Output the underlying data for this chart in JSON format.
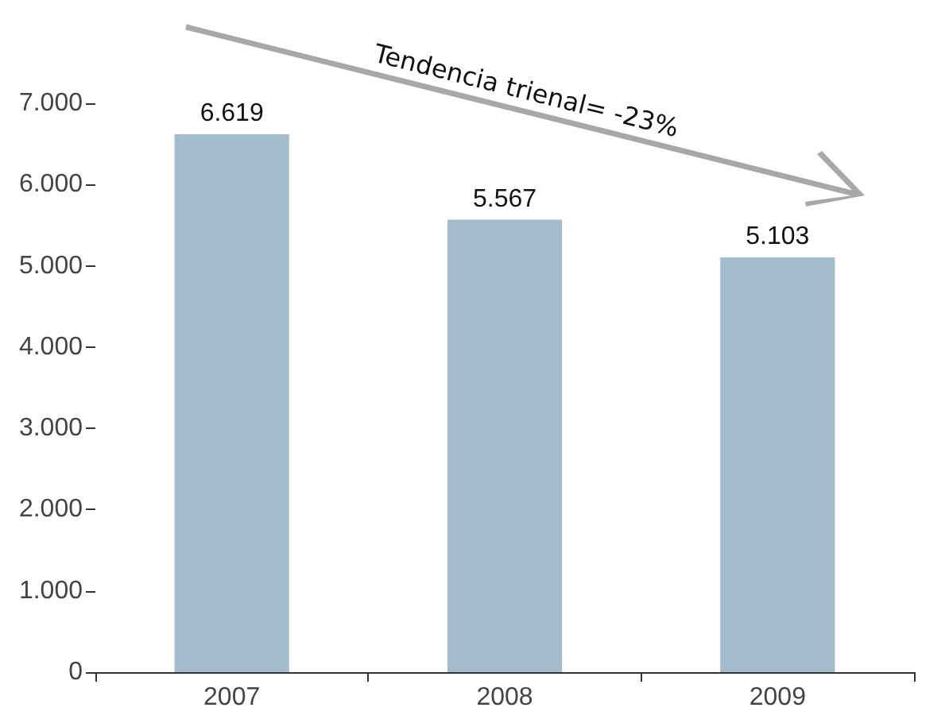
{
  "chart_data": {
    "type": "bar",
    "categories": [
      "2007",
      "2008",
      "2009"
    ],
    "values": [
      6619,
      5567,
      5103
    ],
    "value_labels": [
      "6.619",
      "5.567",
      "5.103"
    ],
    "color": "#a3bccc",
    "ylim": [
      0,
      7000
    ],
    "yticks": [
      {
        "value": 0,
        "label": "0"
      },
      {
        "value": 1000,
        "label": "1.000"
      },
      {
        "value": 2000,
        "label": "2.000"
      },
      {
        "value": 3000,
        "label": "3.000"
      },
      {
        "value": 4000,
        "label": "4.000"
      },
      {
        "value": 5000,
        "label": "5.000"
      },
      {
        "value": 6000,
        "label": "6.000"
      },
      {
        "value": 7000,
        "label": "7.000"
      }
    ],
    "annotations": [
      "Tendencia trienal= -23%"
    ],
    "grid": false
  }
}
